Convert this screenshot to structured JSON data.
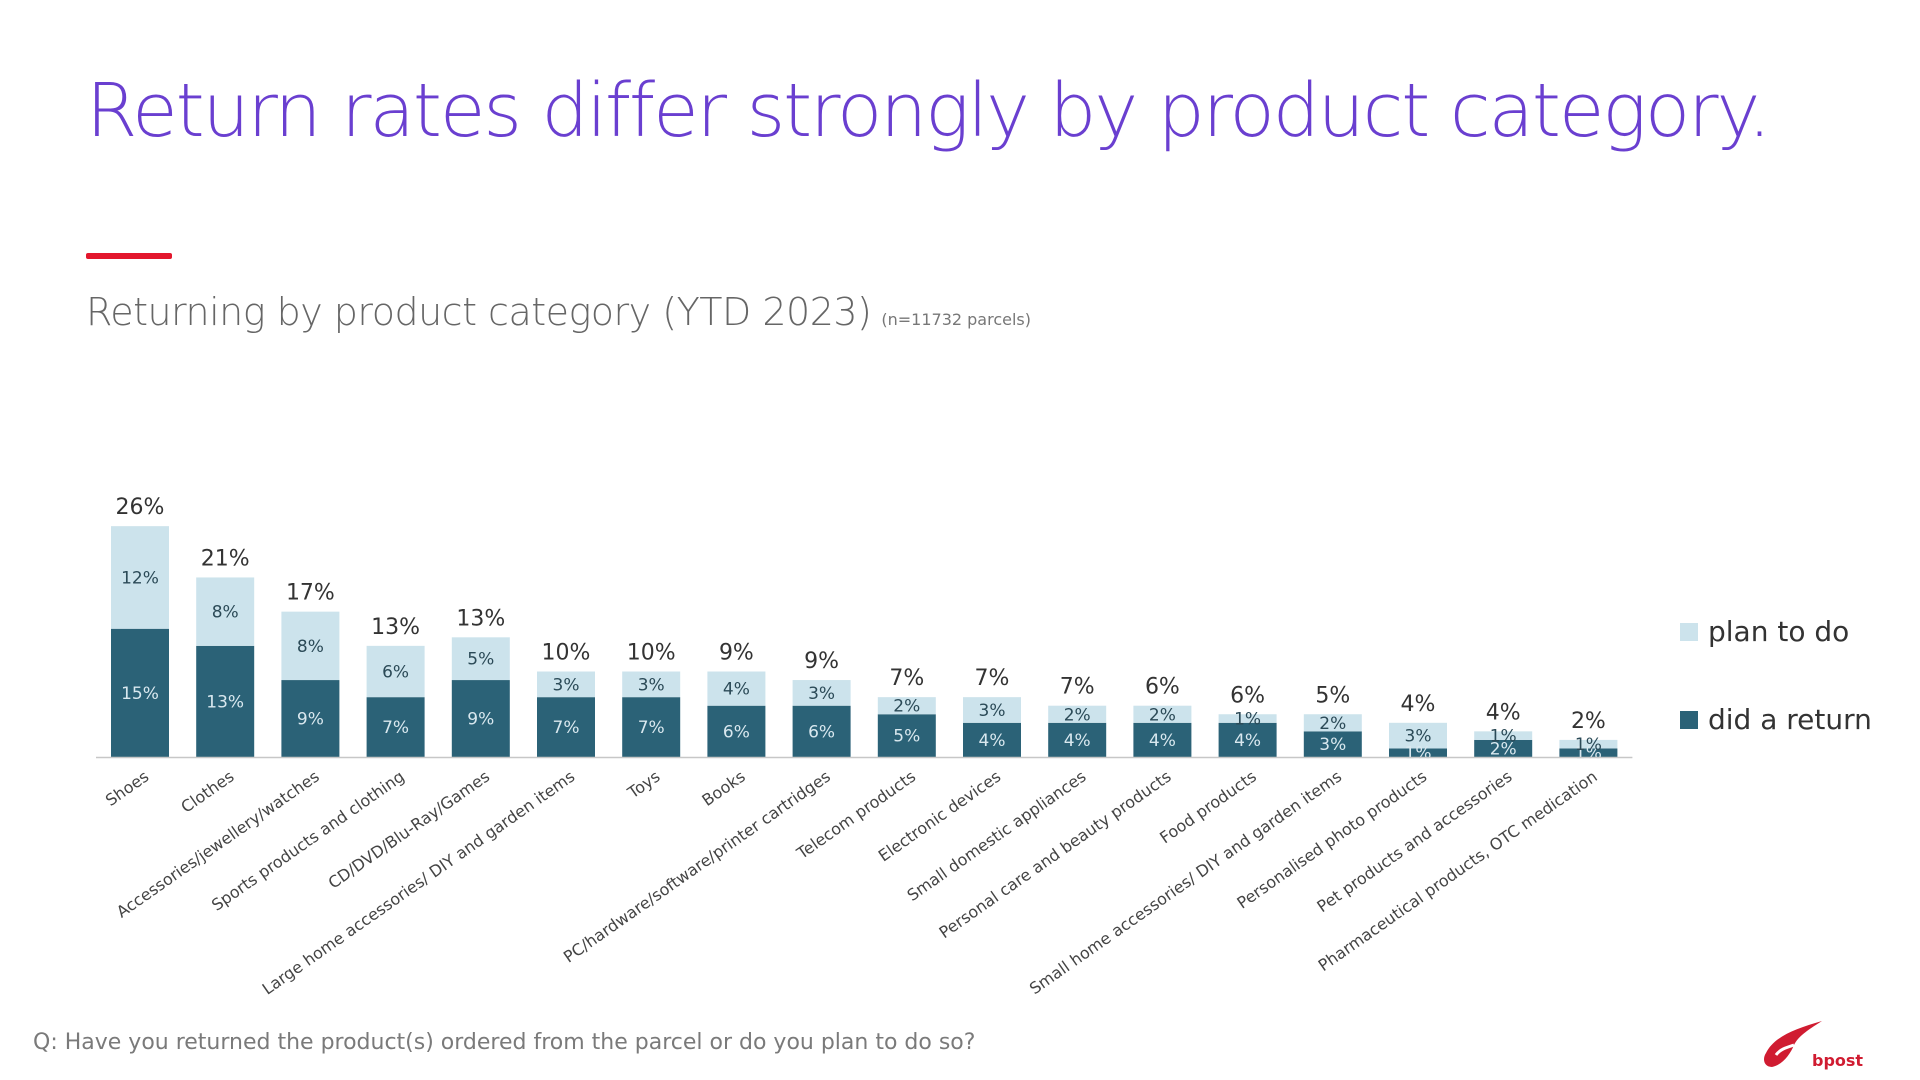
{
  "slide": {
    "title": "Return rates differ strongly by product category.",
    "subtitle": "Returning by product category (YTD 2023)",
    "sample_note": "(n=11732 parcels)",
    "question": "Q: Have you returned the product(s) ordered from the parcel or do you plan to do so?",
    "logo_text": "bpost",
    "title_color": "#6a3fd0",
    "accent_color": "#e3172d"
  },
  "chart_data": {
    "type": "bar",
    "stacked": true,
    "categories": [
      "Shoes",
      "Clothes",
      "Accessories/jewellery/watches",
      "Sports products and clothing",
      "CD/DVD/Blu-Ray/Games",
      "Large home accessories/ DIY and garden items",
      "Toys",
      "Books",
      "PC/hardware/software/printer cartridges",
      "Telecom products",
      "Electronic devices",
      "Small domestic appliances",
      "Personal care and beauty products",
      "Food products",
      "Small home accessories/ DIY and garden items",
      "Personalised photo products",
      "Pet products and accessories",
      "Pharmaceutical products, OTC medication"
    ],
    "series": [
      {
        "name": "did a return",
        "color": "#2b6277",
        "values": [
          15,
          13,
          9,
          7,
          9,
          7,
          7,
          6,
          6,
          5,
          4,
          4,
          4,
          4,
          3,
          1,
          2,
          1
        ],
        "labels": [
          "15%",
          "13%",
          "9%",
          "7%",
          "9%",
          "7%",
          "7%",
          "6%",
          "6%",
          "5%",
          "4%",
          "4%",
          "4%",
          "4%",
          "3%",
          "1%",
          "2%",
          "1%"
        ]
      },
      {
        "name": "plan to do",
        "color": "#cce3ec",
        "values": [
          12,
          8,
          8,
          6,
          5,
          3,
          3,
          4,
          3,
          2,
          3,
          2,
          2,
          1,
          2,
          3,
          1,
          1
        ],
        "labels": [
          "12%",
          "8%",
          "8%",
          "6%",
          "5%",
          "3%",
          "3%",
          "4%",
          "3%",
          "2%",
          "3%",
          "2%",
          "2%",
          "1%",
          "2%",
          "3%",
          "1%",
          "1%"
        ]
      }
    ],
    "totals": [
      26,
      21,
      17,
      13,
      13,
      10,
      10,
      9,
      9,
      7,
      7,
      7,
      6,
      6,
      5,
      4,
      4,
      2
    ],
    "total_labels": [
      "26%",
      "21%",
      "17%",
      "13%",
      "13%",
      "10%",
      "10%",
      "9%",
      "9%",
      "7%",
      "7%",
      "7%",
      "6%",
      "6%",
      "5%",
      "4%",
      "4%",
      "2%"
    ],
    "ylim": [
      0,
      26
    ],
    "legend": "right",
    "grid": false
  }
}
